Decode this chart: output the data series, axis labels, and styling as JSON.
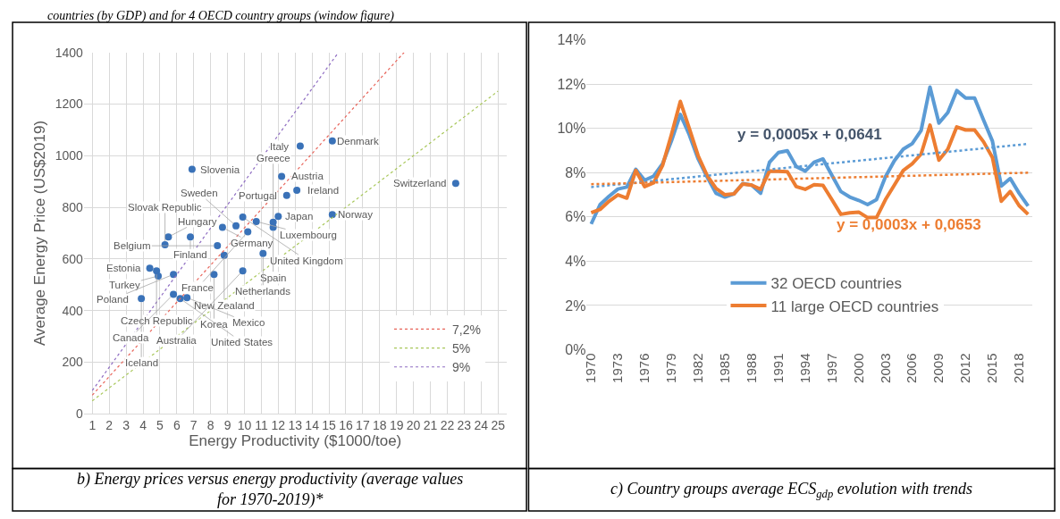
{
  "chart_data": [
    {
      "type": "scatter",
      "xlabel": "Energy Productivity ($1000/toe)",
      "ylabel": "Average Energy Price (US$2019)",
      "xlim": [
        0.5,
        25.5
      ],
      "ylim": [
        0,
        1400
      ],
      "xticks": [
        1,
        2,
        3,
        4,
        5,
        6,
        7,
        8,
        9,
        10,
        11,
        12,
        13,
        14,
        15,
        16,
        17,
        18,
        19,
        20,
        21,
        22,
        23,
        24,
        25
      ],
      "yticks": [
        0,
        200,
        400,
        600,
        800,
        1000,
        1200,
        1400
      ],
      "grid": true,
      "legend": "bottom right",
      "series": [
        {
          "type": "scatter",
          "marker": "circle",
          "color": "#3a72b8",
          "x": [
            6.9,
            13.3,
            15.2,
            12.2,
            13.1,
            12.5,
            22.5,
            15.2,
            5.5,
            5.3,
            6.8,
            8.7,
            9.5,
            9.9,
            10.7,
            12.0,
            11.7,
            11.7,
            10.2,
            8.4,
            8.8,
            11.1,
            4.4,
            4.8,
            4.9,
            5.8,
            8.2,
            9.9,
            3.9,
            5.8,
            6.2,
            6.6
          ],
          "values": [
            947,
            1037,
            1057,
            920,
            866,
            846,
            893,
            772,
            685,
            655,
            685,
            722,
            728,
            762,
            745,
            765,
            742,
            722,
            705,
            651,
            614,
            621,
            564,
            554,
            534,
            540,
            540,
            554,
            446,
            463,
            446,
            450
          ]
        },
        {
          "type": "line",
          "name": "7,2%",
          "color": "#e8645a",
          "line_style": "dotted",
          "x": [
            1,
            19.44
          ],
          "values": [
            72,
            1400
          ]
        },
        {
          "type": "line",
          "name": "5%",
          "color": "#a8c75a",
          "line_style": "dotted",
          "x": [
            1,
            25
          ],
          "values": [
            50,
            1250
          ]
        },
        {
          "type": "line",
          "name": "9%",
          "color": "#8e6cc2",
          "line_style": "dotted",
          "x": [
            1,
            15.56
          ],
          "values": [
            90,
            1400
          ]
        }
      ],
      "annotations": [
        "countries (by GDP) and for 4 OECD country groups (window figure)",
        "b) Energy prices versus energy productivity (average values for 1970-2019)*",
        {
          "text": "Slovenia",
          "x": 6.9,
          "y": 947
        },
        {
          "text": "Italy",
          "x": 13.3,
          "y": 1037
        },
        {
          "text": "Denmark",
          "x": 15.2,
          "y": 1057
        },
        {
          "text": "Austria",
          "x": 12.2,
          "y": 920
        },
        {
          "text": "Ireland",
          "x": 13.1,
          "y": 866
        },
        {
          "text": "Portugal",
          "x": 12.5,
          "y": 846
        },
        {
          "text": "Switzerland",
          "x": 22.5,
          "y": 893
        },
        {
          "text": "Norway",
          "x": 15.2,
          "y": 772
        },
        {
          "text": "Hungary",
          "x": 5.5,
          "y": 685
        },
        {
          "text": "Slovak Republic",
          "x": 5.3,
          "y": 655
        },
        {
          "text": "Finland",
          "x": 6.8,
          "y": 685
        },
        {
          "text": "Germany",
          "x": 8.7,
          "y": 722
        },
        {
          "text": "Sweden",
          "x": 9.5,
          "y": 728
        },
        {
          "text": "United Kingdom",
          "x": 9.9,
          "y": 762
        },
        {
          "text": "Luxembourg",
          "x": 10.7,
          "y": 745
        },
        {
          "text": "Japan",
          "x": 12.0,
          "y": 765
        },
        {
          "text": "Greece",
          "x": 11.7,
          "y": 742
        },
        {
          "text": "Spain",
          "x": 11.7,
          "y": 722
        },
        {
          "text": "France",
          "x": 10.2,
          "y": 705
        },
        {
          "text": "Belgium",
          "x": 8.4,
          "y": 651
        },
        {
          "text": "New Zealand",
          "x": 8.8,
          "y": 614
        },
        {
          "text": "Netherlands",
          "x": 11.1,
          "y": 621
        },
        {
          "text": "Estonia",
          "x": 4.4,
          "y": 564
        },
        {
          "text": "Czech Republic",
          "x": 4.8,
          "y": 554
        },
        {
          "text": "Turkey",
          "x": 4.9,
          "y": 534
        },
        {
          "text": "Poland",
          "x": 5.8,
          "y": 540
        },
        {
          "text": "Korea",
          "x": 8.2,
          "y": 540
        },
        {
          "text": "Australia",
          "x": 9.9,
          "y": 554
        },
        {
          "text": "Iceland",
          "x": 3.9,
          "y": 446
        },
        {
          "text": "Canada",
          "x": 5.8,
          "y": 463
        },
        {
          "text": "United States",
          "x": 6.2,
          "y": 446
        },
        {
          "text": "Mexico",
          "x": 6.6,
          "y": 450
        }
      ]
    },
    {
      "type": "line",
      "xlim": [
        1969.5,
        2019.5
      ],
      "ylim": [
        0,
        14
      ],
      "xticks": [
        1970,
        1973,
        1976,
        1979,
        1982,
        1985,
        1988,
        1991,
        1994,
        1997,
        2000,
        2003,
        2006,
        2009,
        2012,
        2015,
        2018
      ],
      "yticks": [
        {
          "value": 0,
          "label": "0%"
        },
        {
          "value": 2,
          "label": "2%"
        },
        {
          "value": 4,
          "label": "4%"
        },
        {
          "value": 6,
          "label": "6%"
        },
        {
          "value": 8,
          "label": "8%"
        },
        {
          "value": 10,
          "label": "10%"
        },
        {
          "value": 12,
          "label": "12%"
        },
        {
          "value": 14,
          "label": "14%"
        }
      ],
      "grid": "y",
      "legend": "bottom right",
      "line_style": "solid",
      "x": [
        1970,
        1971,
        1972,
        1973,
        1974,
        1975,
        1976,
        1977,
        1978,
        1979,
        1980,
        1981,
        1982,
        1983,
        1984,
        1985,
        1986,
        1987,
        1988,
        1989,
        1990,
        1991,
        1992,
        1993,
        1994,
        1995,
        1996,
        1997,
        1998,
        1999,
        2000,
        2001,
        2002,
        2003,
        2004,
        2005,
        2006,
        2007,
        2008,
        2009,
        2010,
        2011,
        2012,
        2013,
        2014,
        2015,
        2016,
        2017,
        2018,
        2019
      ],
      "series": [
        {
          "name": "32 OECD countries",
          "color": "#5b9bd5",
          "values": [
            5.68,
            6.56,
            6.93,
            7.26,
            7.35,
            8.15,
            7.66,
            7.84,
            8.4,
            9.43,
            10.63,
            9.72,
            8.62,
            7.81,
            7.07,
            6.9,
            7.04,
            7.51,
            7.44,
            7.07,
            8.47,
            8.91,
            8.99,
            8.28,
            8.07,
            8.47,
            8.62,
            7.88,
            7.15,
            6.9,
            6.75,
            6.56,
            6.78,
            7.81,
            8.54,
            9.06,
            9.31,
            9.9,
            11.87,
            10.24,
            10.72,
            11.71,
            11.37,
            11.37,
            10.38,
            9.43,
            7.4,
            7.74,
            7.07,
            6.49
          ]
        },
        {
          "name": "11 large OECD countries",
          "color": "#ed7d31",
          "values": [
            6.19,
            6.34,
            6.71,
            7.0,
            6.85,
            8.1,
            7.37,
            7.54,
            8.32,
            9.72,
            11.22,
            10.01,
            8.76,
            7.88,
            7.29,
            7.0,
            7.04,
            7.49,
            7.44,
            7.25,
            8.07,
            8.06,
            8.04,
            7.37,
            7.25,
            7.46,
            7.43,
            6.78,
            6.12,
            6.19,
            6.22,
            5.97,
            5.97,
            6.78,
            7.44,
            8.1,
            8.4,
            8.84,
            10.15,
            8.57,
            9.06,
            10.07,
            9.93,
            9.93,
            9.4,
            8.69,
            6.71,
            7.15,
            6.51,
            6.12
          ]
        },
        {
          "color": "#5b9bd5",
          "line_style": "dotted",
          "x": [
            1970,
            2019
          ],
          "values": [
            7.35,
            9.3
          ]
        },
        {
          "color": "#ed7d31",
          "line_style": "dotted",
          "x": [
            1970,
            2019
          ],
          "values": [
            7.48,
            8.0
          ]
        }
      ],
      "annotations": [
        "y = 0,0005x + 0,0641",
        "y = 0,0003x + 0,0653",
        "c) Country groups average ECS$_{gdp}$ evolution with trends"
      ]
    }
  ]
}
